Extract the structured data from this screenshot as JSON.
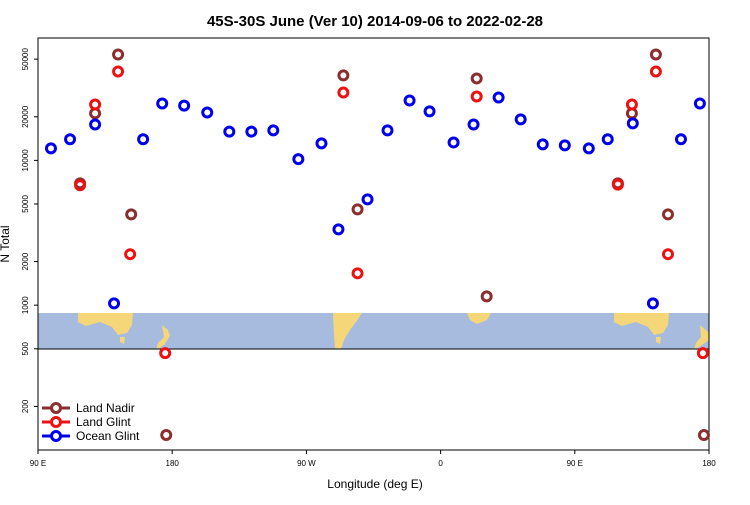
{
  "chart_data": {
    "type": "scatter",
    "title": "45S-30S June (Ver 10)   2014-09-06 to 2022-02-28",
    "x_label": "Longitude (deg E)",
    "y_label": "N Total",
    "log_y": true,
    "legend": "bottom-left",
    "xlim": [
      90,
      540
    ],
    "xticks": [
      {
        "value": 90,
        "label": "90 E"
      },
      180,
      {
        "value": 270,
        "label": "90 W"
      },
      {
        "value": 360,
        "label": "0"
      },
      {
        "value": 450,
        "label": "90 E"
      },
      {
        "value": 540,
        "label": "180"
      }
    ],
    "ylim": [
      100,
      70000
    ],
    "yticks": [
      200,
      500,
      1000,
      2000,
      5000,
      10000,
      20000,
      50000
    ],
    "series": [
      {
        "name": "Land Nadir",
        "color": "#8b2e2e",
        "x": [
          118.2,
          128.3,
          143.7,
          152.5,
          176,
          294.8,
          304.3,
          384.2,
          390.9,
          478.9,
          488.3,
          504.4,
          512.5,
          536.6
        ],
        "values": [
          6940,
          21100,
          53800,
          4240,
          127,
          38600,
          4590,
          36800,
          1150,
          6940,
          21100,
          53800,
          4240,
          127
        ]
      },
      {
        "name": "Land Glint",
        "color": "#ee1111",
        "x": [
          118.2,
          128.3,
          143.7,
          151.8,
          175.3,
          294.8,
          304.3,
          384.2,
          478.9,
          488.3,
          504.4,
          512.5,
          535.9
        ],
        "values": [
          6730,
          24300,
          41100,
          2250,
          467,
          29400,
          1660,
          27600,
          6800,
          24300,
          41100,
          2250,
          467
        ]
      },
      {
        "name": "Ocean Glint",
        "color": "#0000ee",
        "x": [
          98.7,
          111.5,
          128.3,
          141,
          160.5,
          173.3,
          188,
          203.5,
          218.3,
          233.1,
          247.8,
          264.6,
          280.1,
          291.5,
          311,
          324.4,
          339.2,
          352.6,
          368.7,
          382.1,
          398.9,
          413.7,
          428.5,
          443.3,
          459.4,
          472.1,
          488.9,
          502.4,
          521.2,
          533.9
        ],
        "values": [
          12100,
          14000,
          17700,
          1030,
          14000,
          24700,
          23900,
          21400,
          15800,
          15800,
          16100,
          10200,
          13100,
          3340,
          5380,
          16100,
          25900,
          21800,
          13300,
          17700,
          27200,
          19200,
          12900,
          12700,
          12100,
          14000,
          18000,
          1030,
          14000,
          24700
        ]
      }
    ]
  }
}
